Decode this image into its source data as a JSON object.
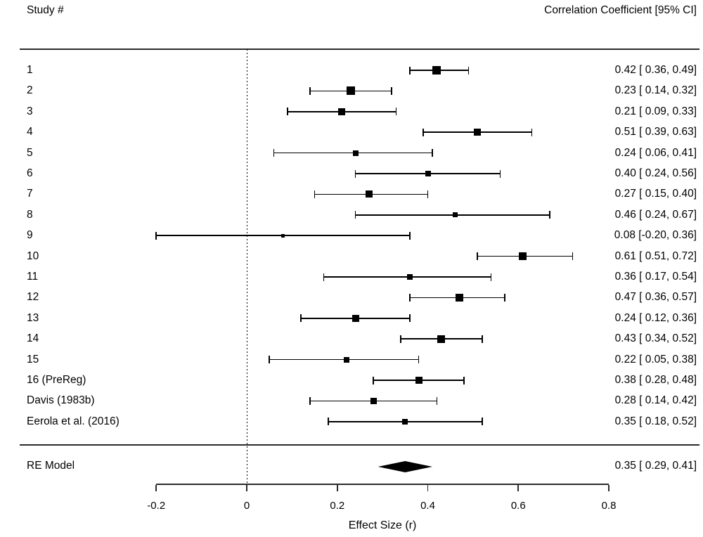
{
  "header": {
    "left_label": "Study #",
    "right_label": "Correlation Coefficient [95% CI]"
  },
  "colors": {
    "foreground": "#000000",
    "background": "#ffffff",
    "line": "#2a2a2a"
  },
  "chart_data": {
    "type": "forest",
    "title": "",
    "xlabel": "Effect Size (r)",
    "value_column_header": "Correlation Coefficient [95% CI]",
    "study_column_header": "Study #",
    "xlim": [
      -0.2,
      0.8
    ],
    "x_ticks": [
      -0.2,
      0,
      0.2,
      0.4,
      0.6,
      0.8
    ],
    "x_tick_labels": [
      "-0.2",
      "0",
      "0.2",
      "0.4",
      "0.6",
      "0.8"
    ],
    "zero_reference_line": 0,
    "studies": [
      {
        "label": "1",
        "r": 0.42,
        "ci": [
          0.36,
          0.49
        ],
        "text": "0.42 [ 0.36, 0.49]",
        "marker_size": 12
      },
      {
        "label": "2",
        "r": 0.23,
        "ci": [
          0.14,
          0.32
        ],
        "text": "0.23 [ 0.14, 0.32]",
        "marker_size": 12
      },
      {
        "label": "3",
        "r": 0.21,
        "ci": [
          0.09,
          0.33
        ],
        "text": "0.21 [ 0.09, 0.33]",
        "marker_size": 10
      },
      {
        "label": "4",
        "r": 0.51,
        "ci": [
          0.39,
          0.63
        ],
        "text": "0.51 [ 0.39, 0.63]",
        "marker_size": 10
      },
      {
        "label": "5",
        "r": 0.24,
        "ci": [
          0.06,
          0.41
        ],
        "text": "0.24 [ 0.06, 0.41]",
        "marker_size": 8
      },
      {
        "label": "6",
        "r": 0.4,
        "ci": [
          0.24,
          0.56
        ],
        "text": "0.40 [ 0.24, 0.56]",
        "marker_size": 8
      },
      {
        "label": "7",
        "r": 0.27,
        "ci": [
          0.15,
          0.4
        ],
        "text": "0.27 [ 0.15, 0.40]",
        "marker_size": 10
      },
      {
        "label": "8",
        "r": 0.46,
        "ci": [
          0.24,
          0.67
        ],
        "text": "0.46 [ 0.24, 0.67]",
        "marker_size": 7
      },
      {
        "label": "9",
        "r": 0.08,
        "ci": [
          -0.2,
          0.36
        ],
        "text": "0.08 [-0.20, 0.36]",
        "marker_size": 5
      },
      {
        "label": "10",
        "r": 0.61,
        "ci": [
          0.51,
          0.72
        ],
        "text": "0.61 [ 0.51, 0.72]",
        "marker_size": 11
      },
      {
        "label": "11",
        "r": 0.36,
        "ci": [
          0.17,
          0.54
        ],
        "text": "0.36 [ 0.17, 0.54]",
        "marker_size": 8
      },
      {
        "label": "12",
        "r": 0.47,
        "ci": [
          0.36,
          0.57
        ],
        "text": "0.47 [ 0.36, 0.57]",
        "marker_size": 11
      },
      {
        "label": "13",
        "r": 0.24,
        "ci": [
          0.12,
          0.36
        ],
        "text": "0.24 [ 0.12, 0.36]",
        "marker_size": 10
      },
      {
        "label": "14",
        "r": 0.43,
        "ci": [
          0.34,
          0.52
        ],
        "text": "0.43 [ 0.34, 0.52]",
        "marker_size": 11
      },
      {
        "label": "15",
        "r": 0.22,
        "ci": [
          0.05,
          0.38
        ],
        "text": "0.22 [ 0.05, 0.38]",
        "marker_size": 8
      },
      {
        "label": "16 (PreReg)",
        "r": 0.38,
        "ci": [
          0.28,
          0.48
        ],
        "text": "0.38 [ 0.28, 0.48]",
        "marker_size": 10
      },
      {
        "label": "Davis (1983b)",
        "r": 0.28,
        "ci": [
          0.14,
          0.42
        ],
        "text": "0.28 [ 0.14, 0.42]",
        "marker_size": 9
      },
      {
        "label": "Eerola et al. (2016)",
        "r": 0.35,
        "ci": [
          0.18,
          0.52
        ],
        "text": "0.35 [ 0.18, 0.52]",
        "marker_size": 8
      }
    ],
    "summary": {
      "label": "RE Model",
      "r": 0.35,
      "ci": [
        0.29,
        0.41
      ],
      "text": "0.35 [ 0.29, 0.41]"
    }
  }
}
